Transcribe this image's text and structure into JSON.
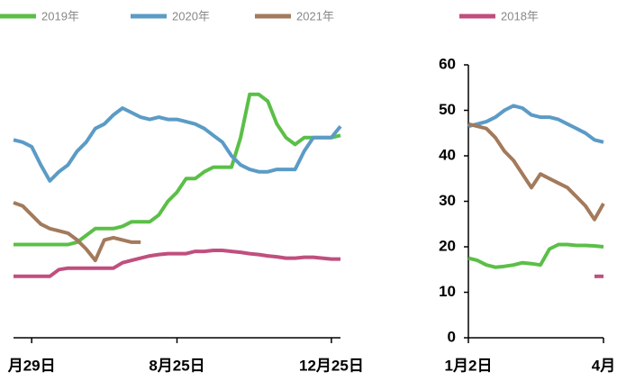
{
  "chart_data": [
    {
      "type": "line",
      "categories": [
        null,
        null,
        "月29日",
        null,
        null,
        null,
        null,
        null,
        null,
        null,
        null,
        null,
        null,
        null,
        null,
        null,
        null,
        null,
        "8月25日",
        null,
        null,
        null,
        null,
        null,
        null,
        null,
        null,
        null,
        null,
        null,
        null,
        null,
        null,
        null,
        null,
        "12月25日",
        null
      ],
      "ylim": [
        0,
        60
      ],
      "series": [
        {
          "name": "2019年",
          "color": "#5bbf47",
          "values": [
            20.5,
            20.5,
            20.5,
            20.5,
            20.5,
            20.5,
            20.5,
            21,
            22.5,
            24,
            24,
            24,
            24.5,
            25.5,
            25.5,
            25.5,
            27,
            30,
            32,
            35,
            35,
            36.5,
            37.5,
            37.5,
            37.5,
            44,
            53.5,
            53.5,
            52,
            47,
            44,
            42.5,
            44,
            44,
            44,
            44,
            44.5
          ]
        },
        {
          "name": "2020年",
          "color": "#5b9bc6",
          "values": [
            43.5,
            43,
            42,
            38,
            34.5,
            36.5,
            38,
            41,
            43,
            46,
            47,
            49,
            50.5,
            49.5,
            48.5,
            48,
            48.5,
            48,
            48,
            47.5,
            47,
            46,
            44.5,
            43,
            40,
            38,
            37,
            36.5,
            36.5,
            37,
            37,
            37,
            41,
            44,
            44,
            44,
            46.5
          ]
        },
        {
          "name": "2021年",
          "color": "#a37a5b",
          "values": [
            29.7,
            29,
            27,
            25,
            24,
            23.5,
            23,
            21.5,
            19.5,
            17,
            21.5,
            22,
            21.5,
            21,
            21,
            null,
            null,
            null,
            null,
            null,
            null,
            null,
            null,
            null,
            null,
            null,
            null,
            null,
            null,
            null,
            null,
            null,
            null,
            null,
            null,
            null,
            null
          ]
        },
        {
          "name": "2018年",
          "color": "#c04f7f",
          "values": [
            13.5,
            13.5,
            13.5,
            13.5,
            13.5,
            15,
            15.3,
            15.3,
            15.3,
            15.3,
            15.3,
            15.3,
            16.5,
            17,
            17.5,
            18,
            18.3,
            18.5,
            18.5,
            18.5,
            19,
            19,
            19.2,
            19.2,
            19,
            18.8,
            18.5,
            18.3,
            18,
            17.8,
            17.5,
            17.5,
            17.7,
            17.7,
            17.5,
            17.3,
            17.3
          ]
        }
      ]
    },
    {
      "type": "line",
      "categories": [
        "1月2日",
        null,
        null,
        null,
        null,
        null,
        null,
        null,
        null,
        null,
        null,
        null,
        null,
        null,
        null,
        "4月"
      ],
      "ylim": [
        0,
        60
      ],
      "yticks": [
        0,
        10,
        20,
        30,
        40,
        50,
        60
      ],
      "series": [
        {
          "color": "#5bbf47",
          "values": [
            17.5,
            17,
            16,
            15.5,
            15.7,
            16,
            16.5,
            16.3,
            16,
            19.5,
            20.5,
            20.5,
            20.3,
            20.3,
            20.2,
            20
          ]
        },
        {
          "color": "#5b9bc6",
          "values": [
            46.5,
            47,
            47.5,
            48.5,
            50,
            51,
            50.5,
            49,
            48.5,
            48.5,
            48,
            47,
            46,
            45,
            43.5,
            43
          ]
        },
        {
          "color": "#a37a5b",
          "values": [
            47,
            46.5,
            46,
            44,
            41,
            39,
            36,
            33,
            36,
            35,
            34,
            33,
            31,
            29,
            26,
            29.5
          ]
        },
        {
          "color": "#c04f7f",
          "values": [
            null,
            null,
            null,
            null,
            null,
            null,
            null,
            null,
            null,
            null,
            null,
            null,
            null,
            null,
            13.5,
            13.5
          ]
        }
      ]
    }
  ]
}
